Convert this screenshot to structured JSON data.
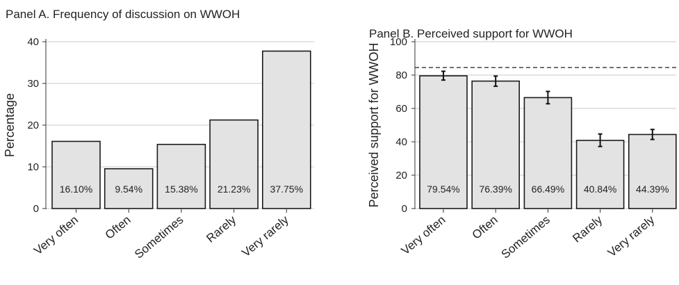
{
  "chart_data": [
    {
      "type": "bar",
      "title": "Panel A. Frequency of discussion on WWOH",
      "xlabel": "",
      "ylabel": "Percentage",
      "ylim": [
        0,
        40
      ],
      "yticks": [
        0,
        10,
        20,
        30,
        40
      ],
      "categories": [
        "Very often",
        "Often",
        "Sometimes",
        "Rarely",
        "Very rarely"
      ],
      "values": [
        16.1,
        9.54,
        15.38,
        21.23,
        37.75
      ],
      "data_labels": [
        "16.10%",
        "9.54%",
        "15.38%",
        "21.23%",
        "37.75%"
      ],
      "grid": "horizontal",
      "legend": "none"
    },
    {
      "type": "bar",
      "title": "Panel B. Perceived support for WWOH",
      "xlabel": "",
      "ylabel": "Perceived support for WWOH",
      "ylim": [
        0,
        100
      ],
      "yticks": [
        0,
        20,
        40,
        60,
        80,
        100
      ],
      "categories": [
        "Very often",
        "Often",
        "Sometimes",
        "Rarely",
        "Very rarely"
      ],
      "values": [
        79.54,
        76.39,
        66.49,
        40.84,
        44.39
      ],
      "error_low": [
        77.0,
        73.3,
        62.8,
        37.2,
        41.4
      ],
      "error_high": [
        82.3,
        79.4,
        70.2,
        44.7,
        47.4
      ],
      "data_labels": [
        "79.54%",
        "76.39%",
        "66.49%",
        "40.84%",
        "44.39%"
      ],
      "reference_line": 84.5,
      "reference_line_style": "dashed",
      "grid": "horizontal",
      "legend": "none"
    }
  ],
  "colors": {
    "bar_fill": "#e3e3e3",
    "bar_stroke": "#1a1a1a",
    "grid": "#c8c8c8",
    "axis": "#333333",
    "text": "#222222"
  }
}
